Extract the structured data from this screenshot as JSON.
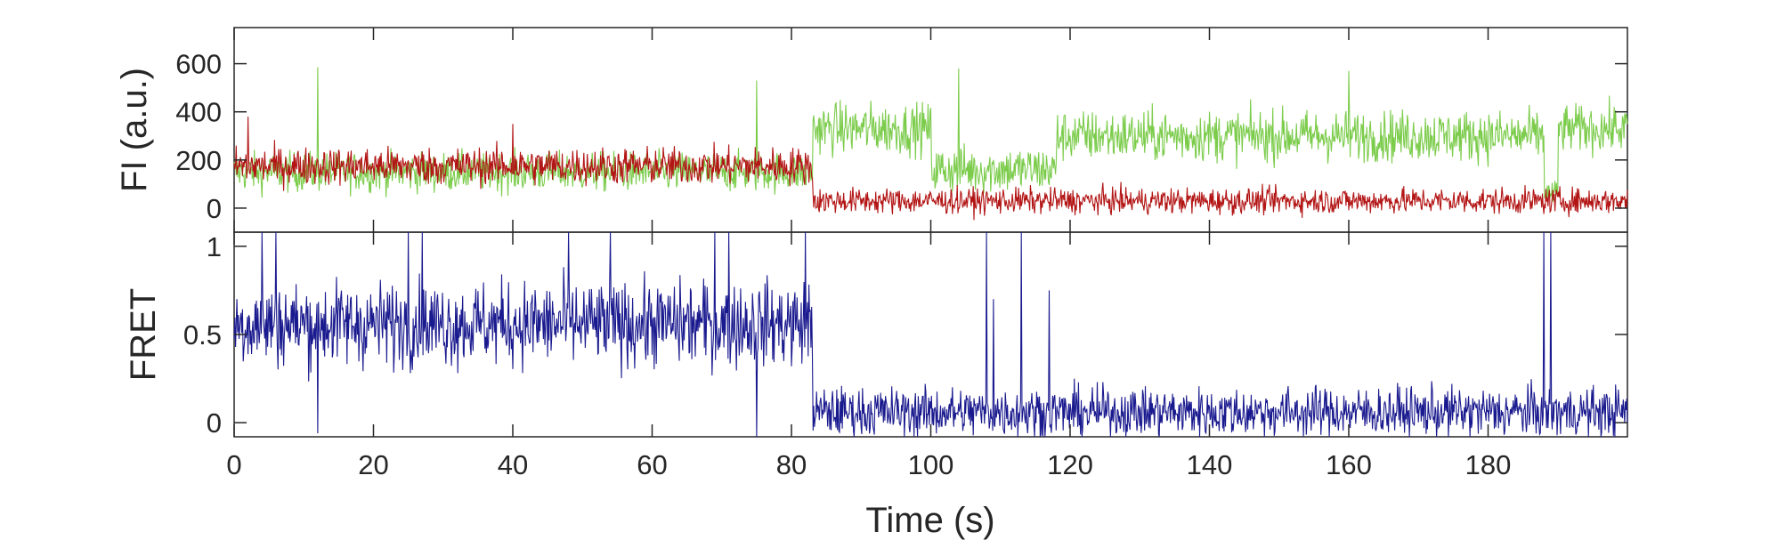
{
  "chart_data": [
    {
      "type": "line",
      "ylabel": "FI (a.u.)",
      "xlim": [
        0,
        200
      ],
      "ylim": [
        -100,
        750
      ],
      "yticks": [
        0,
        200,
        400,
        600
      ],
      "grid": false,
      "series": [
        {
          "color": "#7ccc4c",
          "segments": [
            {
              "x0": 0,
              "x1": 83,
              "mean": 150,
              "noise": 58
            },
            {
              "x0": 83,
              "x1": 100,
              "mean": 330,
              "noise": 75
            },
            {
              "x0": 100,
              "x1": 118,
              "mean": 160,
              "noise": 70
            },
            {
              "x0": 118,
              "x1": 188,
              "mean": 300,
              "noise": 75
            },
            {
              "x0": 188,
              "x1": 190,
              "mean": 60,
              "noise": 40
            },
            {
              "x0": 190,
              "x1": 200,
              "mean": 330,
              "noise": 70
            }
          ],
          "spikes": [
            [
              12,
              585
            ],
            [
              75,
              530
            ],
            [
              104,
              580
            ],
            [
              160,
              570
            ]
          ]
        },
        {
          "color": "#b31515",
          "segments": [
            {
              "x0": 0,
              "x1": 83,
              "mean": 175,
              "noise": 55
            },
            {
              "x0": 83,
              "x1": 200,
              "mean": 30,
              "noise": 38
            }
          ],
          "spikes": [
            [
              2,
              380
            ],
            [
              40,
              350
            ]
          ]
        }
      ]
    },
    {
      "type": "line",
      "ylabel": "FRET",
      "xlabel": "Time (s)",
      "xlim": [
        0,
        200
      ],
      "ylim": [
        -0.08,
        1.08
      ],
      "xticks": [
        0,
        20,
        40,
        60,
        80,
        100,
        120,
        140,
        160,
        180
      ],
      "yticks": [
        0,
        0.5,
        1
      ],
      "grid": false,
      "series": [
        {
          "color": "#1a1a8f",
          "segments": [
            {
              "x0": 0,
              "x1": 83,
              "mean": 0.56,
              "noise": 0.17
            },
            {
              "x0": 83,
              "x1": 200,
              "mean": 0.06,
              "noise": 0.1
            }
          ],
          "spikes": [
            [
              4,
              1.1
            ],
            [
              6,
              1.1
            ],
            [
              12,
              -0.06
            ],
            [
              25,
              1.1
            ],
            [
              27,
              1.1
            ],
            [
              48,
              1.1
            ],
            [
              54,
              1.1
            ],
            [
              69,
              1.1
            ],
            [
              71,
              1.1
            ],
            [
              75,
              -0.08
            ],
            [
              82,
              1.1
            ],
            [
              108,
              1.1
            ],
            [
              113,
              1.1
            ],
            [
              109,
              0.7
            ],
            [
              117,
              0.75
            ],
            [
              188,
              1.1
            ],
            [
              189,
              1.1
            ]
          ]
        }
      ]
    }
  ]
}
